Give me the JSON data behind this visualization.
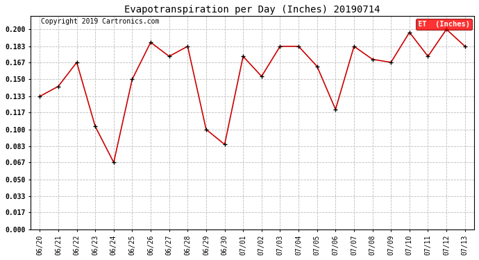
{
  "title": "Evapotranspiration per Day (Inches) 20190714",
  "copyright": "Copyright 2019 Cartronics.com",
  "legend_label": "ET  (Inches)",
  "x_labels": [
    "06/20",
    "06/21",
    "06/22",
    "06/23",
    "06/24",
    "06/25",
    "06/26",
    "06/27",
    "06/28",
    "06/29",
    "06/30",
    "07/01",
    "07/02",
    "07/03",
    "07/04",
    "07/05",
    "07/06",
    "07/07",
    "07/08",
    "07/09",
    "07/10",
    "07/11",
    "07/12",
    "07/13"
  ],
  "y_values": [
    0.133,
    0.143,
    0.167,
    0.103,
    0.067,
    0.15,
    0.187,
    0.173,
    0.183,
    0.1,
    0.085,
    0.173,
    0.153,
    0.183,
    0.183,
    0.163,
    0.12,
    0.183,
    0.17,
    0.167,
    0.197,
    0.173,
    0.2,
    0.183
  ],
  "line_color": "#cc0000",
  "marker_color": "#000000",
  "background_color": "#ffffff",
  "grid_color": "#bbbbbb",
  "ylim": [
    0.0,
    0.213
  ],
  "yticks": [
    0.0,
    0.017,
    0.033,
    0.05,
    0.067,
    0.083,
    0.1,
    0.117,
    0.133,
    0.15,
    0.167,
    0.183,
    0.2
  ],
  "title_fontsize": 10,
  "copyright_fontsize": 7,
  "tick_fontsize": 7,
  "legend_fontsize": 7.5
}
